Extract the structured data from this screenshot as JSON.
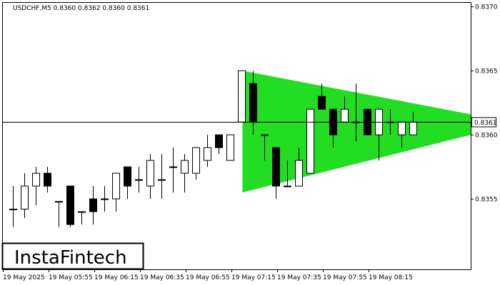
{
  "header": {
    "symbol_info": "USDCHF,M5  0.8360 0.8362 0.8360 0.8361"
  },
  "logo": {
    "text": "InstaFintech"
  },
  "current_price_label": "0.8361",
  "colors": {
    "pattern_fill": "#22dd22",
    "candle_bull": "#ffffff",
    "candle_bear": "#000000",
    "background": "#ffffff"
  },
  "chart_data": {
    "type": "candlestick",
    "instrument": "USDCHF",
    "timeframe": "M5",
    "y_ticks": [
      "0.8370",
      "0.8365",
      "0.8360",
      "0.8355"
    ],
    "x_ticks": [
      "19 May 2025",
      "19 May 05:55",
      "19 May 06:15",
      "19 May 06:35",
      "19 May 06:55",
      "19 May 07:15",
      "19 May 07:35",
      "19 May 07:55",
      "19 May 08:15"
    ],
    "ylim": [
      0.83495,
      0.83703
    ],
    "grid": false,
    "current_price": 0.8361,
    "candles": [
      {
        "o": 0.83542,
        "h": 0.8356,
        "l": 0.83528,
        "c": 0.83542
      },
      {
        "o": 0.83542,
        "h": 0.8357,
        "l": 0.83535,
        "c": 0.8356
      },
      {
        "o": 0.8356,
        "h": 0.83575,
        "l": 0.83545,
        "c": 0.8357
      },
      {
        "o": 0.8357,
        "h": 0.83575,
        "l": 0.83555,
        "c": 0.8356
      },
      {
        "o": 0.83548,
        "h": 0.83548,
        "l": 0.83528,
        "c": 0.83548
      },
      {
        "o": 0.8356,
        "h": 0.8356,
        "l": 0.83528,
        "c": 0.8353
      },
      {
        "o": 0.8354,
        "h": 0.8354,
        "l": 0.8353,
        "c": 0.8354
      },
      {
        "o": 0.8355,
        "h": 0.8356,
        "l": 0.8353,
        "c": 0.8354
      },
      {
        "o": 0.8355,
        "h": 0.8356,
        "l": 0.8354,
        "c": 0.8355
      },
      {
        "o": 0.8355,
        "h": 0.8357,
        "l": 0.8354,
        "c": 0.8357
      },
      {
        "o": 0.83575,
        "h": 0.83575,
        "l": 0.8355,
        "c": 0.8356
      },
      {
        "o": 0.83565,
        "h": 0.83575,
        "l": 0.83555,
        "c": 0.83565
      },
      {
        "o": 0.8356,
        "h": 0.83585,
        "l": 0.8355,
        "c": 0.8358
      },
      {
        "o": 0.83565,
        "h": 0.83585,
        "l": 0.8355,
        "c": 0.83565
      },
      {
        "o": 0.83575,
        "h": 0.8359,
        "l": 0.83555,
        "c": 0.83575
      },
      {
        "o": 0.8357,
        "h": 0.83585,
        "l": 0.83555,
        "c": 0.8358
      },
      {
        "o": 0.8357,
        "h": 0.8359,
        "l": 0.83565,
        "c": 0.8359
      },
      {
        "o": 0.8358,
        "h": 0.836,
        "l": 0.83575,
        "c": 0.8359
      },
      {
        "o": 0.836,
        "h": 0.836,
        "l": 0.83585,
        "c": 0.8359
      },
      {
        "o": 0.8358,
        "h": 0.836,
        "l": 0.8358,
        "c": 0.836
      },
      {
        "o": 0.8361,
        "h": 0.8365,
        "l": 0.8361,
        "c": 0.8365
      },
      {
        "o": 0.8364,
        "h": 0.8365,
        "l": 0.836,
        "c": 0.8361
      },
      {
        "o": 0.836,
        "h": 0.836,
        "l": 0.8358,
        "c": 0.836
      },
      {
        "o": 0.8359,
        "h": 0.8359,
        "l": 0.8355,
        "c": 0.8356
      },
      {
        "o": 0.8356,
        "h": 0.8358,
        "l": 0.8356,
        "c": 0.8356
      },
      {
        "o": 0.8356,
        "h": 0.8359,
        "l": 0.8356,
        "c": 0.8358
      },
      {
        "o": 0.8357,
        "h": 0.8362,
        "l": 0.8357,
        "c": 0.8362
      },
      {
        "o": 0.8363,
        "h": 0.8364,
        "l": 0.8362,
        "c": 0.8362
      },
      {
        "o": 0.8362,
        "h": 0.8362,
        "l": 0.8359,
        "c": 0.836
      },
      {
        "o": 0.8361,
        "h": 0.8363,
        "l": 0.8361,
        "c": 0.8362
      },
      {
        "o": 0.8361,
        "h": 0.8364,
        "l": 0.83595,
        "c": 0.8361
      },
      {
        "o": 0.8362,
        "h": 0.8362,
        "l": 0.836,
        "c": 0.836
      },
      {
        "o": 0.836,
        "h": 0.8362,
        "l": 0.8358,
        "c": 0.8362
      },
      {
        "o": 0.8361,
        "h": 0.8362,
        "l": 0.836,
        "c": 0.8361
      },
      {
        "o": 0.836,
        "h": 0.8361,
        "l": 0.8359,
        "c": 0.8361
      },
      {
        "o": 0.836,
        "h": 0.83618,
        "l": 0.836,
        "c": 0.8361
      }
    ],
    "pattern": {
      "type": "triangle",
      "start_candle": 20,
      "end_x_label": "",
      "apex_top": 0.8365,
      "apex_bottom": 0.83555,
      "right_top": 0.83616,
      "right_bottom": 0.836
    }
  }
}
